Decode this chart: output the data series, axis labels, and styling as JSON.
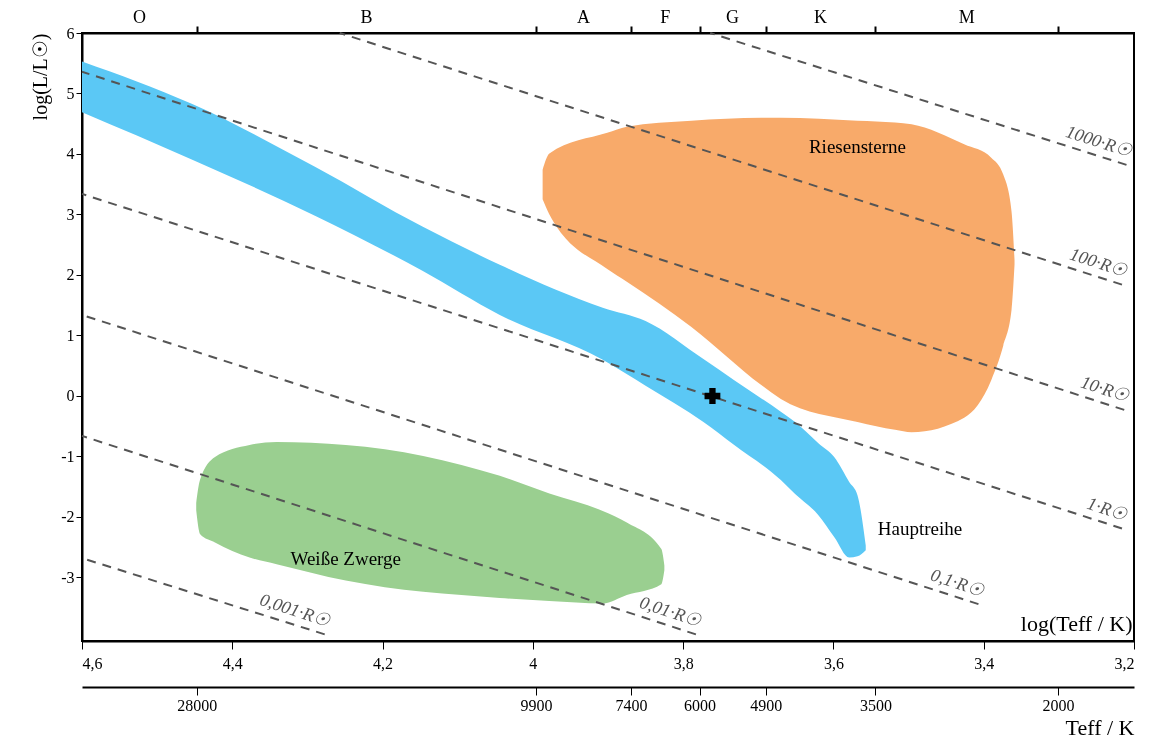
{
  "chart_data": {
    "type": "line",
    "xlabel": "log(Teff / K)",
    "ylabel": "log(L/L☉)",
    "x2label": "Teff / K",
    "xlim": [
      4.6,
      3.2
    ],
    "xticks": [
      {
        "value": 4.6,
        "label": "4,6"
      },
      {
        "value": 4.4,
        "label": "4,4"
      },
      {
        "value": 4.2,
        "label": "4,2"
      },
      4,
      {
        "value": 3.8,
        "label": "3,8"
      },
      {
        "value": 3.6,
        "label": "3,6"
      },
      {
        "value": 3.4,
        "label": "3,4"
      },
      {
        "value": 3.2,
        "label": "3,2"
      }
    ],
    "annotations": [
      "O",
      "B",
      "A",
      "F",
      "G",
      "K",
      "M",
      {
        "text": "Riesensterne",
        "x": 3.568,
        "y": 4.55
      },
      {
        "text": "Hauptreihe",
        "x": 3.557,
        "y": -2.2
      },
      {
        "text": "Weiße Zwerge",
        "x": 4.249,
        "y": -3.05
      }
    ],
    "log": "x2",
    "x2lim": [
      39800,
      1585
    ],
    "x2ticks": [
      28000,
      9900,
      7400,
      6000,
      4900,
      3500,
      2000
    ],
    "ylim": [
      -4.05,
      6
    ],
    "yticks": [
      -3,
      -2,
      -1,
      0,
      1,
      2,
      3,
      4,
      5,
      6
    ],
    "series": [
      {
        "color": "#f8aa6a",
        "x": [
          3.987,
          3.978,
          3.901,
          3.875,
          3.789,
          3.696,
          3.67,
          3.568,
          3.518,
          3.496,
          3.426,
          3.39,
          3.374,
          3.363,
          3.359
        ],
        "values": [
          null,
          null,
          null,
          null,
          null,
          null,
          null,
          null,
          null,
          null,
          null,
          null,
          null,
          null,
          null
        ],
        "upper": [
          3.74,
          4.01,
          4.35,
          4.45,
          4.55,
          4.6,
          4.6,
          4.55,
          4.52,
          4.49,
          4.16,
          3.94,
          3.66,
          3.05,
          2.25
        ],
        "lower": [
          3.25,
          3.0,
          2.1,
          1.89,
          1.14,
          0.18,
          -0.05,
          -0.43,
          -0.56,
          -0.6,
          -0.36,
          0.26,
          0.83,
          1.42,
          2.17
        ]
      },
      {
        "color": "#5bc8f5",
        "x": [
          4.6,
          4.454,
          4.29,
          4.147,
          4.044,
          3.907,
          3.85,
          3.773,
          3.732,
          3.67,
          3.651,
          3.62,
          3.599,
          3.579,
          3.568,
          3.557
        ],
        "values": [
          null,
          null,
          null,
          null,
          null,
          null,
          null,
          null,
          null,
          null,
          null,
          null,
          null,
          null,
          null,
          null
        ],
        "upper": [
          5.53,
          4.83,
          3.79,
          2.8,
          2.17,
          1.46,
          1.24,
          0.61,
          0.26,
          -0.26,
          -0.43,
          -0.78,
          -1.01,
          -1.42,
          -1.64,
          -2.47
        ],
        "lower": [
          4.69,
          3.91,
          2.98,
          2.07,
          1.34,
          0.6,
          0.17,
          -0.43,
          -0.81,
          -1.39,
          -1.62,
          -1.97,
          -2.33,
          -2.67,
          -2.65,
          -2.55
        ]
      },
      {
        "color": "#9acf90",
        "x": [
          4.448,
          4.443,
          4.423,
          4.377,
          4.341,
          4.249,
          4.197,
          4.095,
          4.044,
          3.978,
          3.907,
          3.875,
          3.829,
          3.825
        ],
        "values": [
          null,
          null,
          null,
          null,
          null,
          null,
          null,
          null,
          null,
          null,
          null,
          null,
          null,
          null
        ],
        "upper": [
          -1.77,
          -1.39,
          -1.01,
          -0.81,
          -0.76,
          -0.81,
          -0.88,
          -1.14,
          -1.32,
          -1.61,
          -1.9,
          -2.09,
          -2.53,
          -2.8
        ],
        "lower": [
          -1.89,
          -2.28,
          -2.42,
          -2.67,
          -2.78,
          -3.05,
          -3.16,
          -3.29,
          -3.34,
          -3.39,
          -3.43,
          -3.29,
          -3.11,
          -2.88
        ]
      },
      {
        "name": "1000·R☉",
        "color": "#555555",
        "line_style": "dashed",
        "x": [
          3.764,
          3.21
        ],
        "values": [
          6,
          3.82
        ]
      },
      {
        "name": "100·R☉",
        "color": "#555555",
        "line_style": "dashed",
        "x": [
          4.257,
          3.216
        ],
        "values": [
          6,
          1.84
        ]
      },
      {
        "name": "10·R☉",
        "color": "#555555",
        "line_style": "dashed",
        "x": [
          4.6,
          3.213
        ],
        "values": [
          5.36,
          -0.23
        ]
      },
      {
        "name": "1·R☉",
        "color": "#555555",
        "line_style": "dashed",
        "x": [
          4.6,
          3.216
        ],
        "values": [
          3.34,
          -2.19
        ]
      },
      {
        "name": "0,1·R☉",
        "color": "#555555",
        "line_style": "dashed",
        "x": [
          4.6,
          3.407
        ],
        "values": [
          1.34,
          -3.44
        ]
      },
      {
        "name": "0,01·R☉",
        "color": "#555555",
        "line_style": "dashed",
        "x": [
          4.6,
          3.783
        ],
        "values": [
          -0.66,
          -3.94
        ]
      },
      {
        "name": "0,001·R☉",
        "color": "#555555",
        "line_style": "dashed",
        "x": [
          4.6,
          4.277
        ],
        "values": [
          -2.68,
          -3.94
        ]
      },
      {
        "type": "scatter",
        "marker": "cross",
        "color": "#000000",
        "x": [
          3.761
        ],
        "values": [
          0
        ]
      }
    ]
  }
}
